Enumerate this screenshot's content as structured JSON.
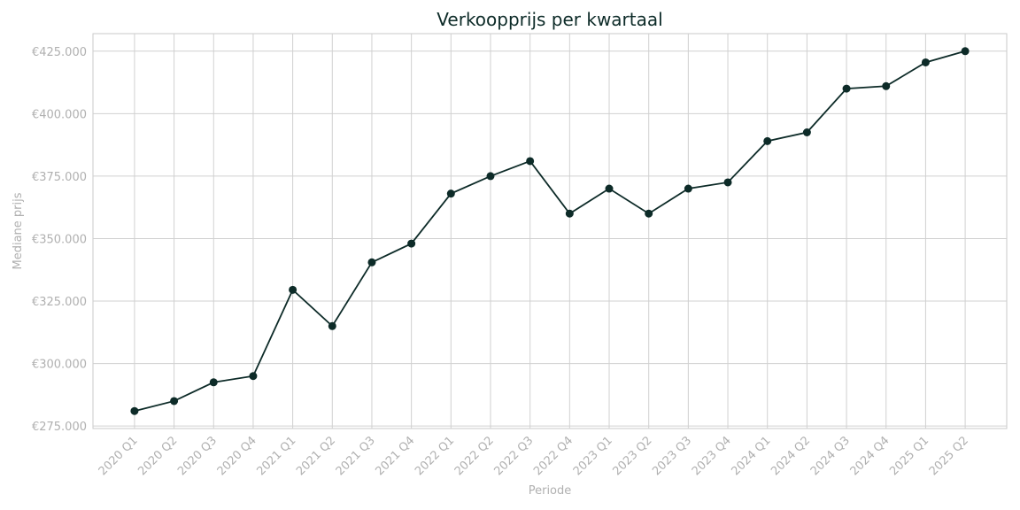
{
  "chart_data": {
    "type": "line",
    "title": "Verkoopprijs per kwartaal",
    "x_label": "Periode",
    "y_label": "Mediane prijs",
    "categories": [
      "2020 Q1",
      "2020 Q2",
      "2020 Q3",
      "2020 Q4",
      "2021 Q1",
      "2021 Q2",
      "2021 Q3",
      "2021 Q4",
      "2022 Q1",
      "2022 Q2",
      "2022 Q3",
      "2022 Q4",
      "2023 Q1",
      "2023 Q2",
      "2023 Q3",
      "2023 Q4",
      "2024 Q1",
      "2024 Q2",
      "2024 Q3",
      "2024 Q4",
      "2025 Q1",
      "2025 Q2"
    ],
    "series": [
      {
        "name": "Mediane prijs",
        "color": "#0d2b28",
        "values": [
          281000,
          285000,
          292500,
          295000,
          329500,
          315000,
          340500,
          348000,
          368000,
          375000,
          381000,
          360000,
          370000,
          360000,
          370000,
          372500,
          389000,
          392500,
          410000,
          411000,
          420500,
          425000
        ]
      }
    ],
    "ylim": [
      274000,
      432000
    ],
    "yticks": [
      {
        "value": 275000,
        "label": "€275.000"
      },
      {
        "value": 300000,
        "label": "€300.000"
      },
      {
        "value": 325000,
        "label": "€325.000"
      },
      {
        "value": 350000,
        "label": "€350.000"
      },
      {
        "value": 375000,
        "label": "€375.000"
      },
      {
        "value": 400000,
        "label": "€400.000"
      },
      {
        "value": 425000,
        "label": "€425.000"
      }
    ],
    "grid": true
  }
}
